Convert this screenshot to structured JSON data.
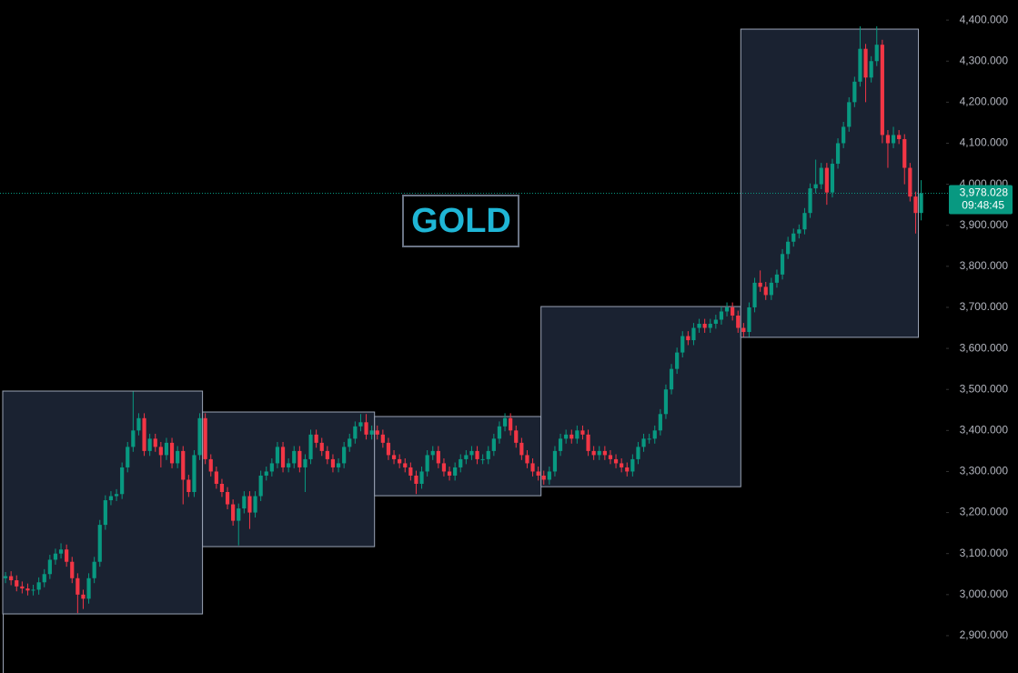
{
  "chart_data": {
    "type": "candlestick",
    "title": "GOLD",
    "ylim": [
      2809,
      4449
    ],
    "yticks": [
      {
        "value": 2900,
        "label": "2,900.000"
      },
      {
        "value": 3000,
        "label": "3,000.000"
      },
      {
        "value": 3100,
        "label": "3,100.000"
      },
      {
        "value": 3200,
        "label": "3,200.000"
      },
      {
        "value": 3300,
        "label": "3,300.000"
      },
      {
        "value": 3400,
        "label": "3,400.000"
      },
      {
        "value": 3500,
        "label": "3,500.000"
      },
      {
        "value": 3600,
        "label": "3,600.000"
      },
      {
        "value": 3700,
        "label": "3,700.000"
      },
      {
        "value": 3800,
        "label": "3,800.000"
      },
      {
        "value": 3900,
        "label": "3,900.000"
      },
      {
        "value": 4000,
        "label": "4,000.000"
      },
      {
        "value": 4100,
        "label": "4,100.000"
      },
      {
        "value": 4200,
        "label": "4,200.000"
      },
      {
        "value": 4300,
        "label": "4,300.000"
      },
      {
        "value": 4400,
        "label": "4,400.000"
      }
    ],
    "last_price": {
      "value": 3978.028,
      "label": "3,978.028",
      "countdown": "09:48:45",
      "color": "#089981"
    },
    "up_color": "#089981",
    "down_color": "#f23645",
    "boxes": [
      {
        "start": 0,
        "end": 36,
        "top": 3496,
        "bottom": 2953
      },
      {
        "start": 36,
        "end": 67,
        "top": 3445,
        "bottom": 3117
      },
      {
        "start": 67,
        "end": 97,
        "top": 3434,
        "bottom": 3241
      },
      {
        "start": 97,
        "end": 133,
        "top": 3702,
        "bottom": 3263
      },
      {
        "start": 133,
        "end": 165,
        "top": 4378,
        "bottom": 3627
      }
    ],
    "series": [
      {
        "open": [
          3040,
          3045,
          3035,
          3020,
          3015,
          3010,
          3012,
          3030,
          3050,
          3085,
          3100,
          3110,
          3080,
          3040,
          3000,
          2990,
          3040,
          3080,
          3170,
          3230,
          3240,
          3245,
          3310,
          3360,
          3400,
          3430,
          3350,
          3380,
          3360,
          3340,
          3370,
          3320,
          3350,
          3280,
          3250,
          3340,
          3430,
          3330,
          3300,
          3270,
          3250,
          3220,
          3180,
          3210,
          3240,
          3200,
          3240,
          3290,
          3300,
          3320,
          3360,
          3310,
          3320,
          3350,
          3310,
          3330,
          3390,
          3370,
          3350,
          3330,
          3310,
          3320,
          3360,
          3380,
          3410,
          3420,
          3390,
          3400,
          3390,
          3370,
          3340,
          3330,
          3320,
          3310,
          3290,
          3270,
          3300,
          3340,
          3350,
          3320,
          3300,
          3290,
          3310,
          3330,
          3340,
          3350,
          3330,
          3330,
          3350,
          3380,
          3410,
          3430,
          3400,
          3370,
          3340,
          3320,
          3300,
          3290,
          3280,
          3300,
          3350,
          3380,
          3390,
          3380,
          3400,
          3390,
          3350,
          3340,
          3350,
          3340,
          3330,
          3320,
          3310,
          3300,
          3330,
          3360,
          3380,
          3380,
          3400,
          3440,
          3500,
          3550,
          3590,
          3630,
          3620,
          3650,
          3660,
          3650,
          3660,
          3670,
          3690,
          3700,
          3680,
          3650,
          3640,
          3700,
          3760,
          3750,
          3730,
          3760,
          3780,
          3830,
          3860,
          3880,
          3890,
          3930,
          3990,
          4000,
          4040,
          3980,
          4050,
          4100,
          4140,
          4200,
          4250,
          4330,
          4260,
          4300,
          4340,
          4120,
          4100,
          4120,
          4110,
          4040,
          3970,
          3930
        ],
        "high": [
          3055,
          3057,
          3047,
          3032,
          3027,
          3024,
          3042,
          3062,
          3097,
          3112,
          3125,
          3122,
          3092,
          3052,
          3012,
          3052,
          3092,
          3182,
          3242,
          3252,
          3257,
          3322,
          3372,
          3495,
          3442,
          3442,
          3392,
          3392,
          3372,
          3382,
          3382,
          3362,
          3362,
          3292,
          3352,
          3442,
          3442,
          3342,
          3312,
          3282,
          3262,
          3232,
          3222,
          3252,
          3252,
          3252,
          3302,
          3312,
          3332,
          3372,
          3372,
          3332,
          3362,
          3362,
          3342,
          3402,
          3402,
          3382,
          3362,
          3342,
          3332,
          3372,
          3392,
          3422,
          3440,
          3440,
          3412,
          3412,
          3402,
          3382,
          3352,
          3342,
          3332,
          3322,
          3302,
          3312,
          3352,
          3362,
          3362,
          3332,
          3312,
          3322,
          3342,
          3352,
          3362,
          3362,
          3342,
          3362,
          3392,
          3422,
          3442,
          3442,
          3412,
          3382,
          3352,
          3332,
          3312,
          3302,
          3312,
          3362,
          3392,
          3402,
          3402,
          3412,
          3412,
          3402,
          3362,
          3362,
          3362,
          3352,
          3342,
          3332,
          3322,
          3342,
          3372,
          3392,
          3392,
          3412,
          3452,
          3512,
          3562,
          3602,
          3642,
          3642,
          3662,
          3672,
          3672,
          3672,
          3682,
          3702,
          3712,
          3712,
          3692,
          3662,
          3712,
          3772,
          3790,
          3762,
          3772,
          3792,
          3842,
          3872,
          3892,
          3902,
          3942,
          4002,
          4060,
          4052,
          4052,
          4062,
          4112,
          4152,
          4212,
          4262,
          4385,
          4342,
          4312,
          4385,
          4352,
          4132,
          4140,
          4132,
          4122,
          4052,
          3982,
          4010
        ],
        "low": [
          3028,
          3023,
          3008,
          3003,
          2998,
          2998,
          3000,
          3018,
          3038,
          3073,
          3088,
          3068,
          3028,
          2955,
          2965,
          2978,
          3028,
          3068,
          3158,
          3218,
          3228,
          3233,
          3298,
          3348,
          3388,
          3338,
          3338,
          3348,
          3310,
          3328,
          3308,
          3308,
          3220,
          3238,
          3238,
          3328,
          3318,
          3288,
          3258,
          3238,
          3208,
          3168,
          3120,
          3198,
          3160,
          3188,
          3228,
          3278,
          3288,
          3308,
          3298,
          3298,
          3308,
          3298,
          3250,
          3318,
          3358,
          3338,
          3318,
          3298,
          3298,
          3308,
          3348,
          3368,
          3398,
          3378,
          3378,
          3378,
          3358,
          3328,
          3318,
          3308,
          3298,
          3278,
          3245,
          3258,
          3288,
          3328,
          3308,
          3288,
          3278,
          3278,
          3298,
          3318,
          3328,
          3318,
          3318,
          3318,
          3338,
          3368,
          3398,
          3388,
          3358,
          3328,
          3308,
          3288,
          3278,
          3268,
          3268,
          3288,
          3338,
          3368,
          3368,
          3368,
          3378,
          3338,
          3328,
          3328,
          3328,
          3318,
          3308,
          3298,
          3288,
          3288,
          3318,
          3348,
          3368,
          3368,
          3388,
          3428,
          3488,
          3538,
          3578,
          3608,
          3608,
          3638,
          3638,
          3638,
          3648,
          3658,
          3678,
          3668,
          3638,
          3628,
          3628,
          3688,
          3738,
          3718,
          3718,
          3748,
          3768,
          3818,
          3848,
          3868,
          3878,
          3918,
          3978,
          3988,
          3950,
          3968,
          4038,
          4088,
          4128,
          4188,
          4238,
          4200,
          4248,
          4288,
          4100,
          4040,
          4088,
          4098,
          4000,
          3958,
          3880,
          3912
        ],
        "close": [
          3045,
          3035,
          3020,
          3015,
          3010,
          3012,
          3030,
          3050,
          3085,
          3100,
          3110,
          3080,
          3040,
          3000,
          2990,
          3040,
          3080,
          3170,
          3230,
          3240,
          3245,
          3310,
          3360,
          3400,
          3430,
          3350,
          3380,
          3360,
          3340,
          3370,
          3320,
          3350,
          3280,
          3250,
          3340,
          3430,
          3330,
          3300,
          3270,
          3250,
          3220,
          3180,
          3210,
          3240,
          3200,
          3240,
          3290,
          3300,
          3320,
          3360,
          3310,
          3320,
          3350,
          3310,
          3330,
          3390,
          3370,
          3350,
          3330,
          3310,
          3320,
          3360,
          3380,
          3410,
          3420,
          3390,
          3400,
          3390,
          3370,
          3340,
          3330,
          3320,
          3310,
          3290,
          3270,
          3300,
          3340,
          3350,
          3320,
          3300,
          3290,
          3310,
          3330,
          3340,
          3350,
          3330,
          3330,
          3350,
          3380,
          3410,
          3430,
          3400,
          3370,
          3340,
          3320,
          3300,
          3290,
          3280,
          3300,
          3350,
          3380,
          3390,
          3380,
          3400,
          3390,
          3350,
          3340,
          3350,
          3340,
          3330,
          3320,
          3310,
          3300,
          3330,
          3360,
          3380,
          3380,
          3400,
          3440,
          3500,
          3550,
          3590,
          3630,
          3620,
          3650,
          3660,
          3650,
          3660,
          3670,
          3690,
          3700,
          3680,
          3650,
          3640,
          3700,
          3760,
          3750,
          3730,
          3760,
          3780,
          3830,
          3860,
          3880,
          3890,
          3930,
          3990,
          4000,
          4040,
          3980,
          4050,
          4100,
          4140,
          4200,
          4250,
          4330,
          4260,
          4300,
          4340,
          4120,
          4100,
          4120,
          4110,
          4040,
          3970,
          3930,
          3978.028
        ]
      }
    ]
  }
}
